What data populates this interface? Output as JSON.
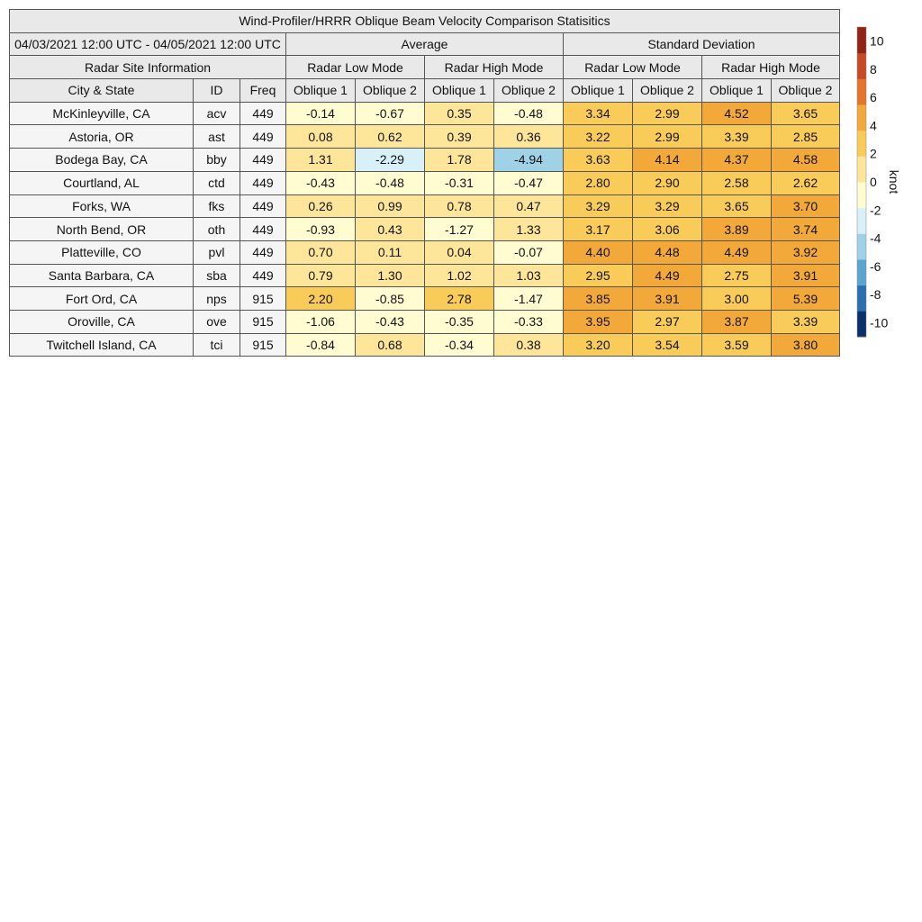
{
  "chart_data": {
    "type": "table",
    "title": "Wind-Profiler/HRRR Oblique Beam Velocity Comparison Statisitics",
    "date_range": "04/03/2021 12:00 UTC - 04/05/2021 12:00 UTC",
    "group_headers": [
      "Average",
      "Standard Deviation"
    ],
    "site_header": "Radar Site Information",
    "mode_headers": [
      "Radar Low Mode",
      "Radar High Mode",
      "Radar Low Mode",
      "Radar High Mode"
    ],
    "column_headers": [
      "City & State",
      "ID",
      "Freq",
      "Oblique 1",
      "Oblique 2",
      "Oblique 1",
      "Oblique 2",
      "Oblique 1",
      "Oblique 2",
      "Oblique 1",
      "Oblique 2"
    ],
    "rows": [
      {
        "city": "McKinleyville, CA",
        "id": "acv",
        "freq": "449",
        "values": [
          "-0.14",
          "-0.67",
          "0.35",
          "-0.48",
          "3.34",
          "2.99",
          "4.52",
          "3.65"
        ]
      },
      {
        "city": "Astoria, OR",
        "id": "ast",
        "freq": "449",
        "values": [
          "0.08",
          "0.62",
          "0.39",
          "0.36",
          "3.22",
          "2.99",
          "3.39",
          "2.85"
        ]
      },
      {
        "city": "Bodega Bay, CA",
        "id": "bby",
        "freq": "449",
        "values": [
          "1.31",
          "-2.29",
          "1.78",
          "-4.94",
          "3.63",
          "4.14",
          "4.37",
          "4.58"
        ]
      },
      {
        "city": "Courtland, AL",
        "id": "ctd",
        "freq": "449",
        "values": [
          "-0.43",
          "-0.48",
          "-0.31",
          "-0.47",
          "2.80",
          "2.90",
          "2.58",
          "2.62"
        ]
      },
      {
        "city": "Forks, WA",
        "id": "fks",
        "freq": "449",
        "values": [
          "0.26",
          "0.99",
          "0.78",
          "0.47",
          "3.29",
          "3.29",
          "3.65",
          "3.70"
        ]
      },
      {
        "city": "North Bend, OR",
        "id": "oth",
        "freq": "449",
        "values": [
          "-0.93",
          "0.43",
          "-1.27",
          "1.33",
          "3.17",
          "3.06",
          "3.89",
          "3.74"
        ]
      },
      {
        "city": "Platteville, CO",
        "id": "pvl",
        "freq": "449",
        "values": [
          "0.70",
          "0.11",
          "0.04",
          "-0.07",
          "4.40",
          "4.48",
          "4.49",
          "3.92"
        ]
      },
      {
        "city": "Santa Barbara, CA",
        "id": "sba",
        "freq": "449",
        "values": [
          "0.79",
          "1.30",
          "1.02",
          "1.03",
          "2.95",
          "4.49",
          "2.75",
          "3.91"
        ]
      },
      {
        "city": "Fort Ord, CA",
        "id": "nps",
        "freq": "915",
        "values": [
          "2.20",
          "-0.85",
          "2.78",
          "-1.47",
          "3.85",
          "3.91",
          "3.00",
          "5.39"
        ]
      },
      {
        "city": "Oroville, CA",
        "id": "ove",
        "freq": "915",
        "values": [
          "-1.06",
          "-0.43",
          "-0.35",
          "-0.33",
          "3.95",
          "2.97",
          "3.87",
          "3.39"
        ]
      },
      {
        "city": "Twitchell Island, CA",
        "id": "tci",
        "freq": "915",
        "values": [
          "-0.84",
          "0.68",
          "-0.34",
          "0.38",
          "3.20",
          "3.54",
          "3.59",
          "3.80"
        ]
      }
    ],
    "colorbar": {
      "label": "knot",
      "range": [
        -11,
        11
      ],
      "ticks": [
        -10,
        -8,
        -6,
        -4,
        -2,
        0,
        2,
        4,
        6,
        8,
        10
      ],
      "colors": [
        "#08306b",
        "#2b6fae",
        "#5aa6d0",
        "#9fd2e6",
        "#d8f0f8",
        "#fffcd2",
        "#fde69a",
        "#f9cc5a",
        "#f3a93a",
        "#e3742a",
        "#c74a22",
        "#8f2417"
      ]
    }
  }
}
